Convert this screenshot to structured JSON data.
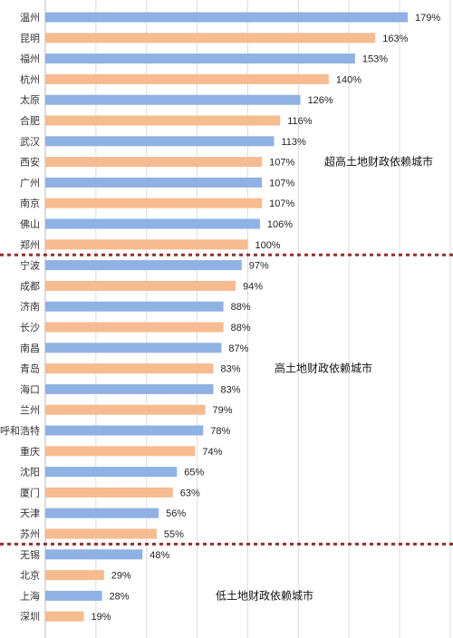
{
  "chart_data": {
    "type": "bar",
    "orientation": "horizontal",
    "categories": [
      "温州",
      "昆明",
      "福州",
      "杭州",
      "太原",
      "合肥",
      "武汉",
      "西安",
      "广州",
      "南京",
      "佛山",
      "郑州",
      "宁波",
      "成都",
      "济南",
      "长沙",
      "南昌",
      "青岛",
      "海口",
      "兰州",
      "呼和浩特",
      "重庆",
      "沈阳",
      "厦门",
      "天津",
      "苏州",
      "无锡",
      "北京",
      "上海",
      "深圳"
    ],
    "values": [
      179,
      163,
      153,
      140,
      126,
      116,
      113,
      107,
      107,
      107,
      106,
      100,
      97,
      94,
      88,
      88,
      87,
      83,
      83,
      79,
      78,
      74,
      65,
      63,
      56,
      55,
      48,
      29,
      28,
      19
    ],
    "value_labels": [
      "179%",
      "163%",
      "153%",
      "140%",
      "126%",
      "116%",
      "113%",
      "107%",
      "107%",
      "107%",
      "106%",
      "100%",
      "97%",
      "94%",
      "88%",
      "88%",
      "87%",
      "83%",
      "83%",
      "79%",
      "78%",
      "74%",
      "65%",
      "63%",
      "56%",
      "55%",
      "48%",
      "29%",
      "28%",
      "19%"
    ],
    "xlim": [
      0,
      200
    ],
    "grid": true,
    "colors": {
      "blue": "#8fb1e3",
      "orange": "#f6bb8f",
      "divider": "#9b2b2b"
    },
    "bar_color_pattern": [
      "blue",
      "orange"
    ],
    "groups": [
      {
        "label": "超高土地财政依赖城市",
        "start": 0,
        "end": 11
      },
      {
        "label": "高土地财政依赖城市",
        "start": 12,
        "end": 25
      },
      {
        "label": "低土地财政依赖城市",
        "start": 26,
        "end": 29
      }
    ]
  }
}
